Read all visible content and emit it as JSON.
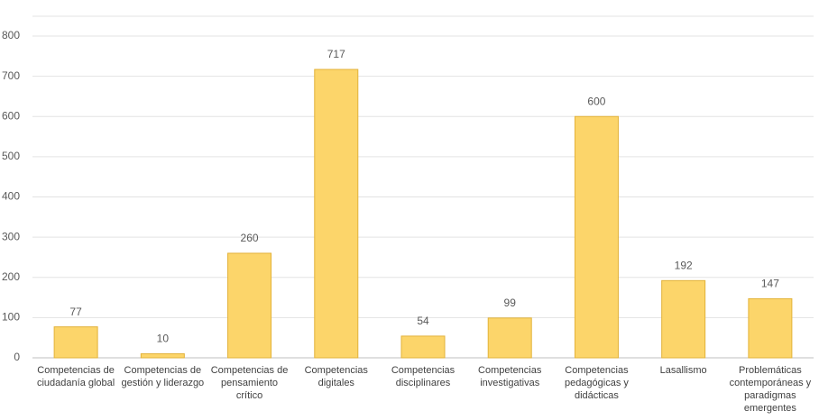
{
  "chart_data": {
    "type": "bar",
    "categories": [
      "Competencias de ciudadanía global",
      "Competencias de gestión y liderazgo",
      "Competencias de pensamiento crítico",
      "Competencias digitales",
      "Competencias disciplinares",
      "Competencias investigativas",
      "Competencias pedagógicas y didácticas",
      "Lasallismo",
      "Problemáticas contemporáneas y paradigmas emergentes"
    ],
    "values": [
      77,
      10,
      260,
      717,
      54,
      99,
      600,
      192,
      147
    ],
    "color": "#fcd56a",
    "ylim": [
      0,
      800
    ],
    "yticks": [
      0,
      100,
      200,
      300,
      400,
      500,
      600,
      700,
      800
    ],
    "grid": true
  }
}
